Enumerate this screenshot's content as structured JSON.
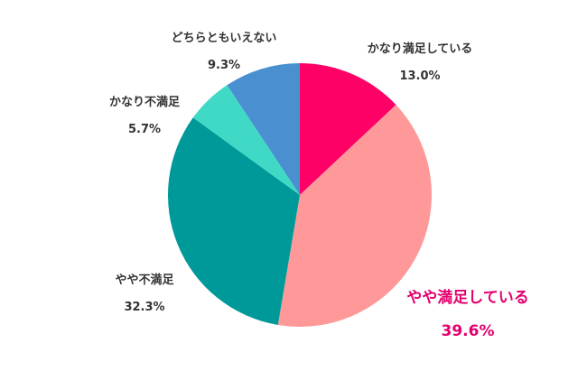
{
  "chart_data": {
    "type": "pie",
    "title": "",
    "start": "12 o'clock",
    "direction": "clockwise",
    "slices": [
      {
        "label": "かなり満足している",
        "value": 13.0,
        "value_label": "13.0%",
        "color": "#ff0066",
        "label_color": "#333333",
        "highlight": false
      },
      {
        "label": "やや満足している",
        "value": 39.6,
        "value_label": "39.6%",
        "color": "#ff9999",
        "label_color": "#e4006e",
        "highlight": true
      },
      {
        "label": "やや不満足",
        "value": 32.3,
        "value_label": "32.3%",
        "color": "#009999",
        "label_color": "#333333",
        "highlight": false
      },
      {
        "label": "かなり不満足",
        "value": 5.7,
        "value_label": "5.7%",
        "color": "#40d9c6",
        "label_color": "#333333",
        "highlight": false
      },
      {
        "label": "どちらともいえない",
        "value": 9.3,
        "value_label": "9.3%",
        "color": "#4a90d0",
        "label_color": "#333333",
        "highlight": false
      }
    ]
  }
}
